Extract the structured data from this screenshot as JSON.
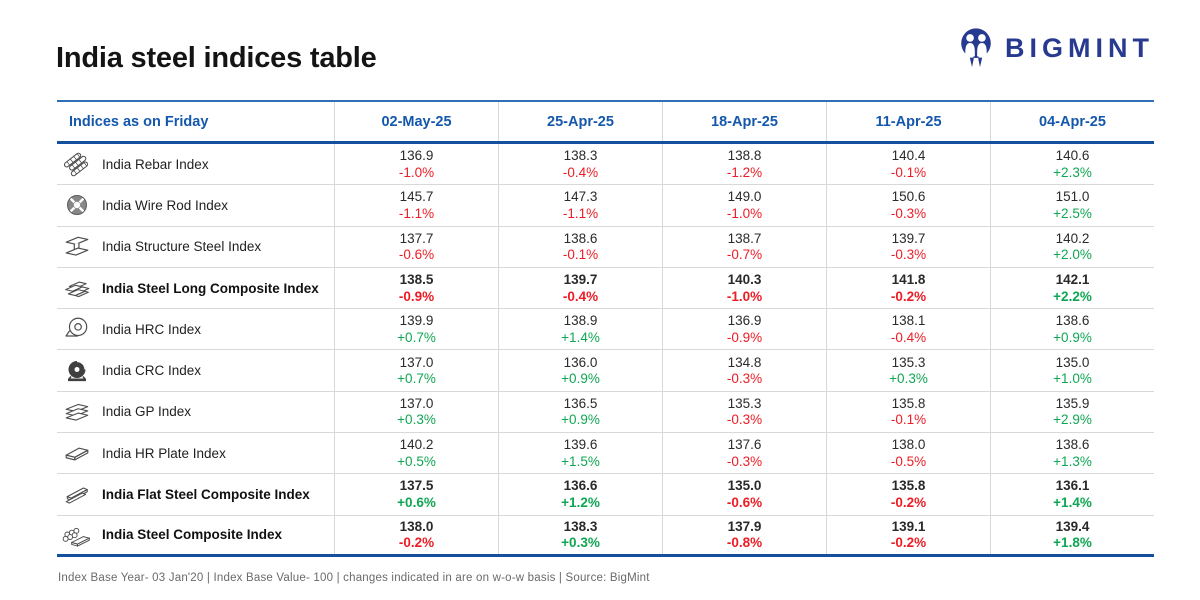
{
  "page": {
    "title": "India steel indices table",
    "footnote": "Index Base Year- 03 Jan'20 | Index Base Value- 100 | changes indicated in are on w-o-w basis | Source: BigMint"
  },
  "brand": {
    "name": "BIGMINT",
    "logo_color": "#283a8f"
  },
  "colors": {
    "header_blue_text": "#1458ad",
    "header_rule_blue": "#15509f",
    "positive_green": "#0fa653",
    "negative_red": "#ee1c25",
    "row_divider_gray": "#d8d8d8"
  },
  "chart_data": {
    "type": "table",
    "title": "India steel indices table",
    "label_header": "Indices as on Friday",
    "date_columns": [
      "02-May-25",
      "25-Apr-25",
      "18-Apr-25",
      "11-Apr-25",
      "04-Apr-25"
    ],
    "rows": [
      {
        "label": "India Rebar Index",
        "icon": "rebar-icon",
        "bold": false,
        "values": [
          "136.9",
          "138.3",
          "138.8",
          "140.4",
          "140.6"
        ],
        "changes": [
          "-1.0%",
          "-0.4%",
          "-1.2%",
          "-0.1%",
          "+2.3%"
        ]
      },
      {
        "label": "India Wire Rod Index",
        "icon": "wire-rod-icon",
        "bold": false,
        "values": [
          "145.7",
          "147.3",
          "149.0",
          "150.6",
          "151.0"
        ],
        "changes": [
          "-1.1%",
          "-1.1%",
          "-1.0%",
          "-0.3%",
          "+2.5%"
        ]
      },
      {
        "label": "India Structure Steel Index",
        "icon": "structure-steel-icon",
        "bold": false,
        "values": [
          "137.7",
          "138.6",
          "138.7",
          "139.7",
          "140.2"
        ],
        "changes": [
          "-0.6%",
          "-0.1%",
          "-0.7%",
          "-0.3%",
          "+2.0%"
        ]
      },
      {
        "label": "India Steel Long Composite Index",
        "icon": "long-bars-icon",
        "bold": true,
        "values": [
          "138.5",
          "139.7",
          "140.3",
          "141.8",
          "142.1"
        ],
        "changes": [
          "-0.9%",
          "-0.4%",
          "-1.0%",
          "-0.2%",
          "+2.2%"
        ]
      },
      {
        "label": "India HRC Index",
        "icon": "hrc-coil-icon",
        "bold": false,
        "values": [
          "139.9",
          "138.9",
          "136.9",
          "138.1",
          "138.6"
        ],
        "changes": [
          "+0.7%",
          "+1.4%",
          "-0.9%",
          "-0.4%",
          "+0.9%"
        ]
      },
      {
        "label": "India CRC Index",
        "icon": "crc-coil-icon",
        "bold": false,
        "values": [
          "137.0",
          "136.0",
          "134.8",
          "135.3",
          "135.0"
        ],
        "changes": [
          "+0.7%",
          "+0.9%",
          "-0.3%",
          "+0.3%",
          "+1.0%"
        ]
      },
      {
        "label": "India GP Index",
        "icon": "gp-sheets-icon",
        "bold": false,
        "values": [
          "137.0",
          "136.5",
          "135.3",
          "135.8",
          "135.9"
        ],
        "changes": [
          "+0.3%",
          "+0.9%",
          "-0.3%",
          "-0.1%",
          "+2.9%"
        ]
      },
      {
        "label": "India HR Plate Index",
        "icon": "hr-plate-icon",
        "bold": false,
        "values": [
          "140.2",
          "139.6",
          "137.6",
          "138.0",
          "138.6"
        ],
        "changes": [
          "+0.5%",
          "+1.5%",
          "-0.3%",
          "-0.5%",
          "+1.3%"
        ]
      },
      {
        "label": "India Flat Steel Composite Index",
        "icon": "flat-bars-icon",
        "bold": true,
        "values": [
          "137.5",
          "136.6",
          "135.0",
          "135.8",
          "136.1"
        ],
        "changes": [
          "+0.6%",
          "+1.2%",
          "-0.6%",
          "-0.2%",
          "+1.4%"
        ]
      },
      {
        "label": "India Steel Composite Index",
        "icon": "steel-composite-icon",
        "bold": true,
        "values": [
          "138.0",
          "138.3",
          "137.9",
          "139.1",
          "139.4"
        ],
        "changes": [
          "-0.2%",
          "+0.3%",
          "-0.8%",
          "-0.2%",
          "+1.8%"
        ]
      }
    ]
  }
}
